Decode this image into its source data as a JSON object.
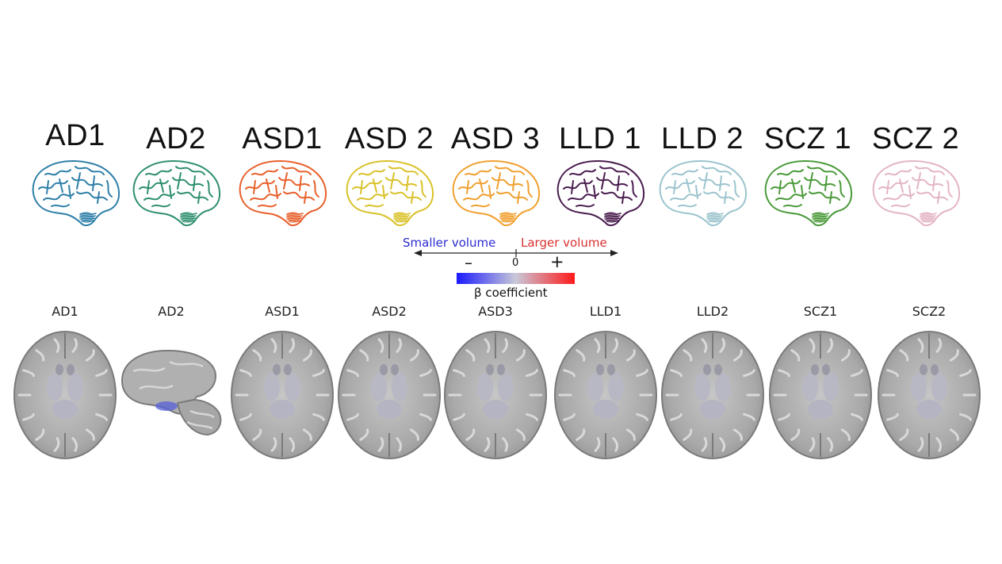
{
  "panels": [
    {
      "top_label": "AD1",
      "bottom_label": "AD1",
      "brain_color": "#2e7fa8",
      "view": "axial"
    },
    {
      "top_label": "AD2",
      "bottom_label": "AD2",
      "brain_color": "#2f8f6f",
      "view": "sagittal"
    },
    {
      "top_label": "ASD1",
      "bottom_label": "ASD1",
      "brain_color": "#e8602c",
      "view": "axial"
    },
    {
      "top_label": "ASD 2",
      "bottom_label": "ASD2",
      "brain_color": "#d9c22a",
      "view": "axial"
    },
    {
      "top_label": "ASD 3",
      "bottom_label": "ASD3",
      "brain_color": "#f0a030",
      "view": "axial"
    },
    {
      "top_label": "LLD 1",
      "bottom_label": "LLD1",
      "brain_color": "#4a1d4f",
      "view": "axial"
    },
    {
      "top_label": "LLD 2",
      "bottom_label": "LLD2",
      "brain_color": "#9cc4ce",
      "view": "axial"
    },
    {
      "top_label": "SCZ 1",
      "bottom_label": "SCZ1",
      "brain_color": "#4a9a3a",
      "view": "axial"
    },
    {
      "top_label": "SCZ 2",
      "bottom_label": "SCZ2",
      "brain_color": "#e3b5c4",
      "view": "axial"
    }
  ],
  "legend": {
    "smaller_label": "Smaller volume",
    "larger_label": "Larger volume",
    "minus_label": "–",
    "zero_label": "0",
    "plus_label": "+",
    "colorbar_title": "β coefficient",
    "colorbar_colors": [
      "#1a1aff",
      "#c8c8d8",
      "#ff1a1a"
    ],
    "smaller_color": "#2a2ad0",
    "larger_color": "#d93030"
  }
}
